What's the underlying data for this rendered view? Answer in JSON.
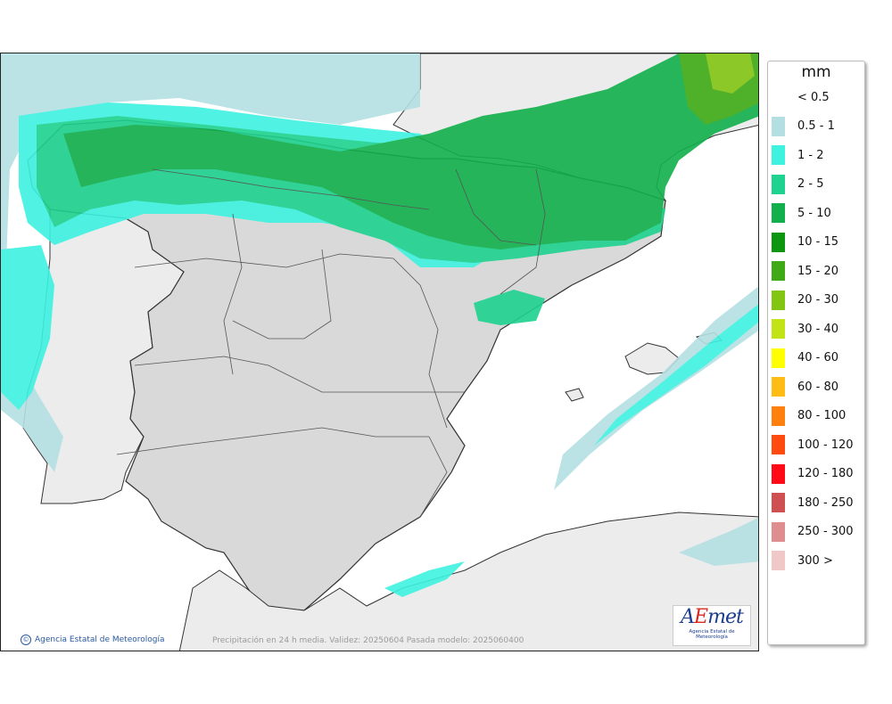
{
  "legend": {
    "unit": "mm",
    "items": [
      {
        "label": "< 0.5",
        "color": "#ffffff"
      },
      {
        "label": "0.5 - 1",
        "color": "#b4dfe2"
      },
      {
        "label": "1 - 2",
        "color": "#3ef2e0"
      },
      {
        "label": "2 - 5",
        "color": "#1ed28f"
      },
      {
        "label": "5 - 10",
        "color": "#12b04c"
      },
      {
        "label": "10 - 15",
        "color": "#0d9610"
      },
      {
        "label": "15 - 20",
        "color": "#3faa16"
      },
      {
        "label": "20 - 30",
        "color": "#82c512"
      },
      {
        "label": "30 - 40",
        "color": "#c2e315"
      },
      {
        "label": "40 - 60",
        "color": "#ffff00"
      },
      {
        "label": "60 - 80",
        "color": "#ffbc15"
      },
      {
        "label": "80 - 100",
        "color": "#ff7f0f"
      },
      {
        "label": "100 - 120",
        "color": "#ff4a10"
      },
      {
        "label": "120 - 180",
        "color": "#ff0a15"
      },
      {
        "label": "180 - 250",
        "color": "#cf5050"
      },
      {
        "label": "250 - 300",
        "color": "#de8e8e"
      },
      {
        "label": "300 >",
        "color": "#f0c8c8"
      }
    ]
  },
  "footer": {
    "credit": "Agencia Estatal de Meteorología",
    "caption": "Precipitación en 24 h media. Validez: 20250604 Pasada modelo: 2025060400",
    "logo_word": "AEmet",
    "logo_sub": "Agencia Estatal de Meteorología"
  },
  "colors": {
    "land": "#dcdcdc",
    "neighbour": "#ececec",
    "sea": "#ffffff",
    "border": "#333333"
  }
}
